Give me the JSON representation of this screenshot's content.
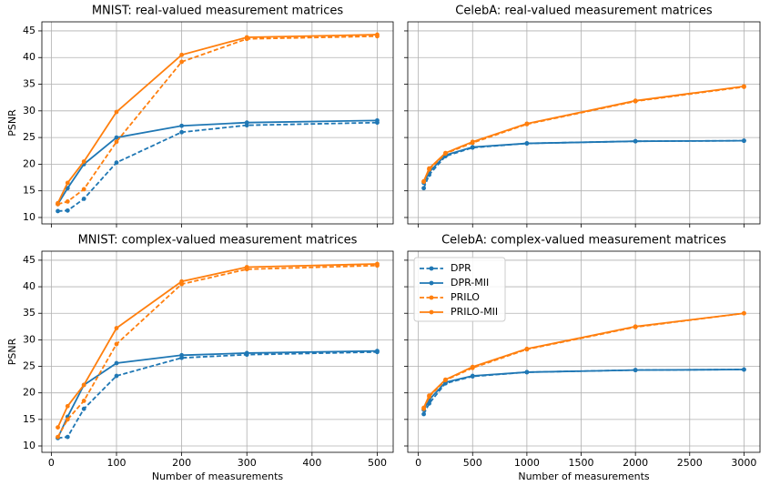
{
  "chart_data": [
    {
      "type": "line",
      "title": "MNIST: real-valued measurement matrices",
      "y_label": "PSNR",
      "x": [
        10,
        25,
        50,
        100,
        200,
        300,
        500
      ],
      "xlim": [
        -14.5,
        524.5
      ],
      "xticks": [
        0,
        100,
        200,
        300,
        400,
        500
      ],
      "ylim": [
        8.8,
        46.7
      ],
      "yticks": [
        10,
        15,
        20,
        25,
        30,
        35,
        40,
        45
      ],
      "grid": true,
      "show_xtick_labels": false,
      "show_ytick_labels": true,
      "series": [
        {
          "name": "DPR",
          "color": "#1f77b4",
          "dashed": true,
          "values": [
            11.2,
            11.3,
            13.5,
            20.3,
            26,
            27.3,
            27.8
          ]
        },
        {
          "name": "DPR-MII",
          "color": "#1f77b4",
          "dashed": false,
          "values": [
            12.5,
            15.5,
            20,
            25,
            27.2,
            27.8,
            28.2
          ]
        },
        {
          "name": "PRILO",
          "color": "#ff7f0e",
          "dashed": true,
          "values": [
            12.5,
            13,
            15.3,
            24.2,
            39.2,
            43.5,
            44
          ]
        },
        {
          "name": "PRILO-MII",
          "color": "#ff7f0e",
          "dashed": false,
          "values": [
            12.7,
            16.5,
            20.5,
            29.8,
            40.5,
            43.8,
            44.3
          ]
        }
      ]
    },
    {
      "type": "line",
      "title": "CelebA: real-valued measurement matrices",
      "x": [
        50,
        100,
        250,
        500,
        1000,
        2000,
        3000
      ],
      "xlim": [
        -97.5,
        3147.5
      ],
      "xticks": [
        0,
        500,
        1000,
        1500,
        2000,
        2500,
        3000
      ],
      "ylim": [
        8.8,
        46.7
      ],
      "yticks": [
        10,
        15,
        20,
        25,
        30,
        35,
        40,
        45
      ],
      "grid": true,
      "show_xtick_labels": false,
      "show_ytick_labels": false,
      "series": [
        {
          "name": "DPR",
          "color": "#1f77b4",
          "dashed": true,
          "values": [
            15.5,
            18,
            21.5,
            23.1,
            23.9,
            24.3,
            24.4
          ]
        },
        {
          "name": "DPR-MII",
          "color": "#1f77b4",
          "dashed": false,
          "values": [
            16.5,
            18.5,
            21.7,
            23.2,
            23.9,
            24.3,
            24.4
          ]
        },
        {
          "name": "PRILO",
          "color": "#ff7f0e",
          "dashed": true,
          "values": [
            16.7,
            19,
            22,
            24,
            27.5,
            31.8,
            34.5
          ]
        },
        {
          "name": "PRILO-MII",
          "color": "#ff7f0e",
          "dashed": false,
          "values": [
            16.8,
            19.2,
            22.1,
            24.2,
            27.6,
            31.9,
            34.6
          ]
        }
      ]
    },
    {
      "type": "line",
      "title": "MNIST: complex-valued measurement matrices",
      "y_label": "PSNR",
      "x_label": "Number of measurements",
      "x": [
        10,
        25,
        50,
        100,
        200,
        300,
        500
      ],
      "xlim": [
        -14.5,
        524.5
      ],
      "xticks": [
        0,
        100,
        200,
        300,
        400,
        500
      ],
      "ylim": [
        8.8,
        46.7
      ],
      "yticks": [
        10,
        15,
        20,
        25,
        30,
        35,
        40,
        45
      ],
      "grid": true,
      "show_xtick_labels": true,
      "show_ytick_labels": true,
      "series": [
        {
          "name": "DPR",
          "color": "#1f77b4",
          "dashed": true,
          "values": [
            11.5,
            11.7,
            17,
            23.2,
            26.6,
            27.2,
            27.7
          ]
        },
        {
          "name": "DPR-MII",
          "color": "#1f77b4",
          "dashed": false,
          "values": [
            11.5,
            15.5,
            21.5,
            25.6,
            27.1,
            27.5,
            27.9
          ]
        },
        {
          "name": "PRILO",
          "color": "#ff7f0e",
          "dashed": true,
          "values": [
            11.7,
            15,
            18.5,
            29.2,
            40.5,
            43.3,
            44
          ]
        },
        {
          "name": "PRILO-MII",
          "color": "#ff7f0e",
          "dashed": false,
          "values": [
            13.5,
            17.5,
            21.5,
            32.2,
            41,
            43.7,
            44.3
          ]
        }
      ]
    },
    {
      "type": "line",
      "title": "CelebA: complex-valued measurement matrices",
      "x_label": "Number of measurements",
      "x": [
        50,
        100,
        250,
        500,
        1000,
        2000,
        3000
      ],
      "xlim": [
        -97.5,
        3147.5
      ],
      "xticks": [
        0,
        500,
        1000,
        1500,
        2000,
        2500,
        3000
      ],
      "ylim": [
        8.8,
        46.7
      ],
      "yticks": [
        10,
        15,
        20,
        25,
        30,
        35,
        40,
        45
      ],
      "grid": true,
      "show_xtick_labels": true,
      "show_ytick_labels": false,
      "legend": "upper left",
      "series": [
        {
          "name": "DPR",
          "color": "#1f77b4",
          "dashed": true,
          "values": [
            16,
            18,
            21.8,
            23.1,
            23.9,
            24.3,
            24.4
          ]
        },
        {
          "name": "DPR-MII",
          "color": "#1f77b4",
          "dashed": false,
          "values": [
            16.8,
            18.7,
            22,
            23.2,
            23.9,
            24.3,
            24.4
          ]
        },
        {
          "name": "PRILO",
          "color": "#ff7f0e",
          "dashed": true,
          "values": [
            17,
            19.3,
            22.4,
            24.7,
            28.2,
            32.4,
            35
          ]
        },
        {
          "name": "PRILO-MII",
          "color": "#ff7f0e",
          "dashed": false,
          "values": [
            17.2,
            19.5,
            22.5,
            24.9,
            28.3,
            32.5,
            35
          ]
        }
      ]
    }
  ]
}
